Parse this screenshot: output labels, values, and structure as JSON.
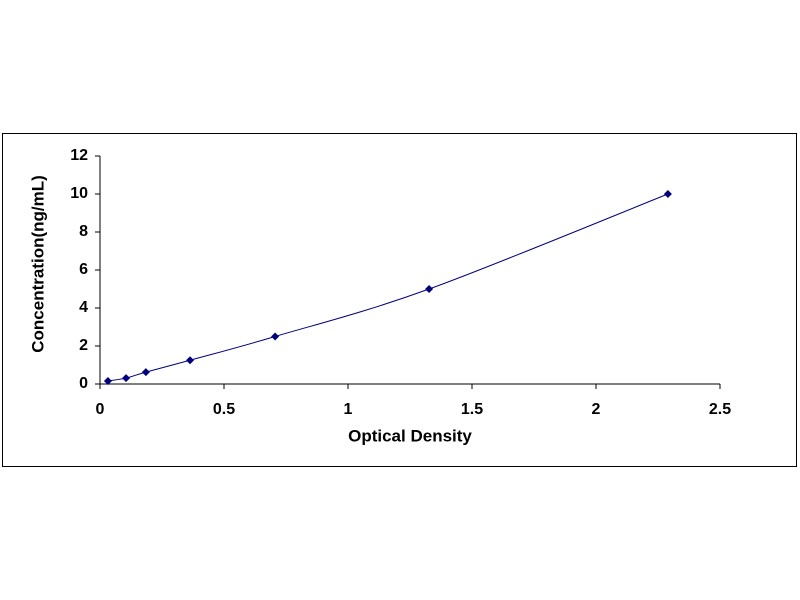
{
  "chart_data": {
    "type": "scatter",
    "line": true,
    "smooth": true,
    "grid": false,
    "color": "#00007f",
    "x_label": "Optical Density",
    "y_label": "Concentration(ng/mL)",
    "x": [
      0.032,
      0.105,
      0.185,
      0.363,
      0.706,
      1.327,
      2.29
    ],
    "values": [
      0.156,
      0.312,
      0.625,
      1.25,
      2.5,
      5,
      10
    ],
    "xlim": [
      0,
      2.5
    ],
    "xticks": [
      0,
      0.5,
      1,
      1.5,
      2,
      2.5
    ],
    "ylim": [
      0,
      12
    ],
    "yticks": [
      0,
      2,
      4,
      6,
      8,
      10,
      12
    ]
  }
}
